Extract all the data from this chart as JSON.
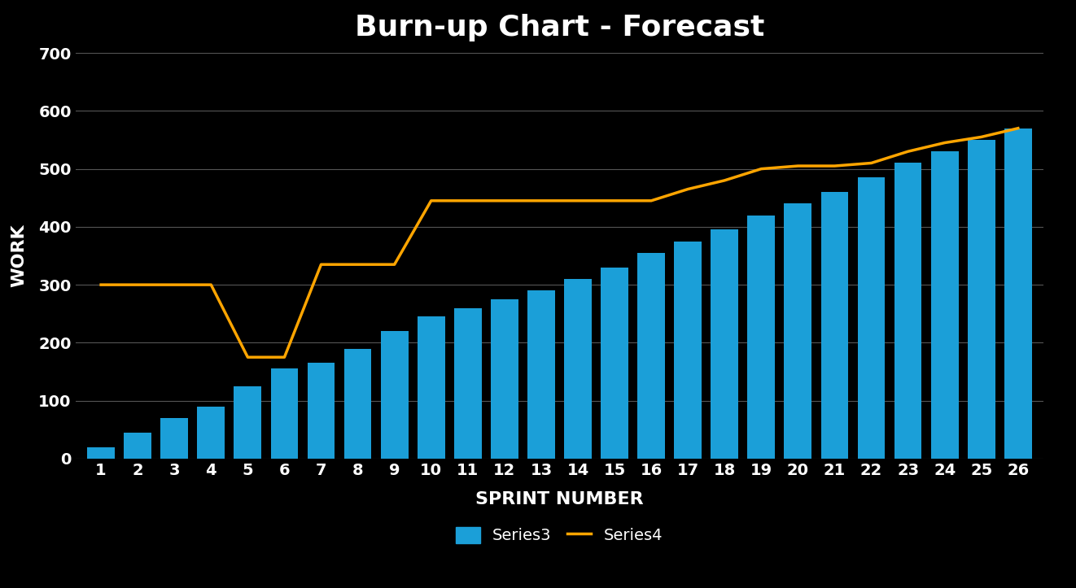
{
  "title": "Burn-up Chart - Forecast",
  "xlabel": "SPRINT NUMBER",
  "ylabel": "WORK",
  "background_color": "#000000",
  "bar_color": "#1B9FD8",
  "line_color": "#FFA500",
  "categories": [
    1,
    2,
    3,
    4,
    5,
    6,
    7,
    8,
    9,
    10,
    11,
    12,
    13,
    14,
    15,
    16,
    17,
    18,
    19,
    20,
    21,
    22,
    23,
    24,
    25,
    26
  ],
  "series3": [
    20,
    45,
    70,
    90,
    125,
    155,
    165,
    190,
    220,
    245,
    260,
    275,
    290,
    310,
    330,
    355,
    375,
    395,
    420,
    440,
    460,
    485,
    510,
    530,
    550,
    570
  ],
  "series4": [
    300,
    300,
    300,
    300,
    175,
    175,
    335,
    335,
    335,
    445,
    445,
    445,
    445,
    445,
    445,
    445,
    465,
    480,
    500,
    505,
    505,
    510,
    530,
    545,
    555,
    570
  ],
  "ylim": [
    0,
    700
  ],
  "yticks": [
    0,
    100,
    200,
    300,
    400,
    500,
    600,
    700
  ],
  "title_fontsize": 26,
  "axis_label_fontsize": 16,
  "tick_fontsize": 14,
  "legend_fontsize": 14,
  "grid_color": "#555555",
  "text_color": "#ffffff",
  "legend_series3": "Series3",
  "legend_series4": "Series4"
}
